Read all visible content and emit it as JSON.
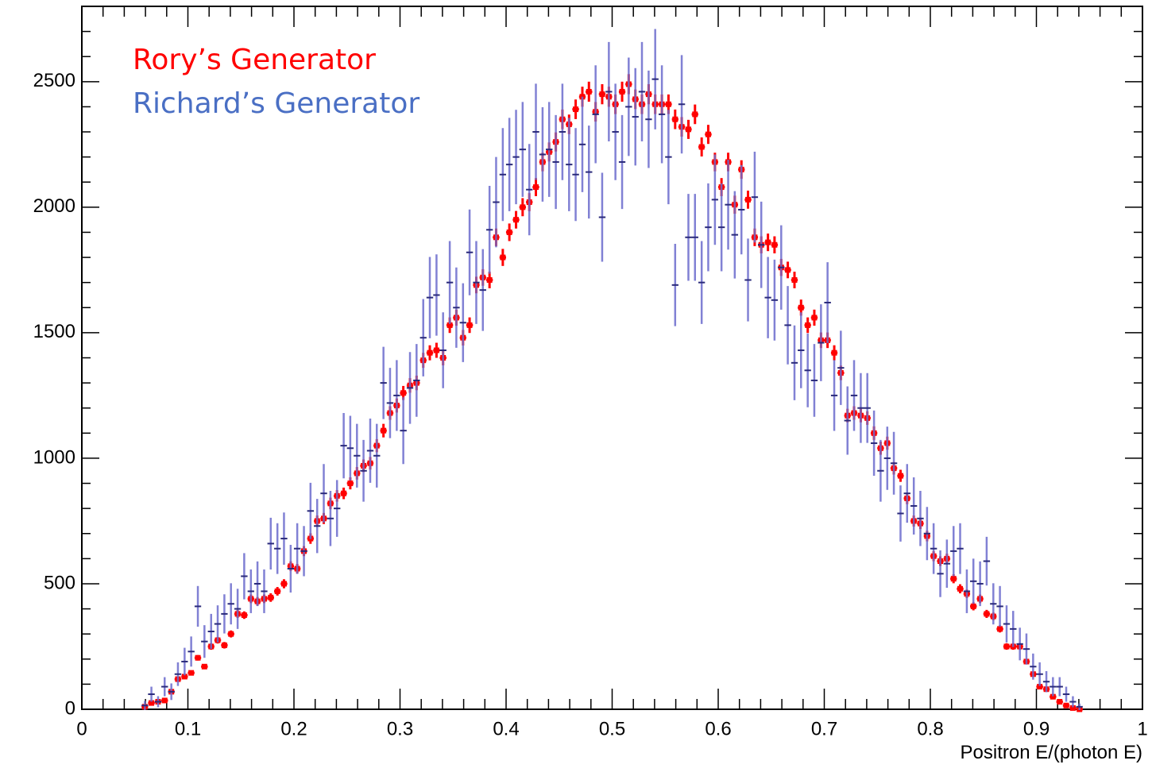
{
  "chart_data": {
    "type": "errorbar",
    "x_label": "Positron E/(photon E)",
    "xlim": [
      0,
      1
    ],
    "ylim": [
      0,
      2800
    ],
    "xticks": [
      0,
      0.1,
      0.2,
      0.3,
      0.4,
      0.5,
      0.6,
      0.7,
      0.8,
      0.9,
      1
    ],
    "yticks": [
      0,
      500,
      1000,
      1500,
      2000,
      2500
    ],
    "xminorticks": [
      0.02,
      0.04,
      0.06,
      0.08,
      0.12,
      0.14,
      0.16,
      0.18,
      0.22,
      0.24,
      0.26,
      0.28,
      0.32,
      0.34,
      0.36,
      0.38,
      0.42,
      0.44,
      0.46,
      0.48,
      0.52,
      0.54,
      0.56,
      0.58,
      0.62,
      0.64,
      0.66,
      0.68,
      0.72,
      0.74,
      0.76,
      0.78,
      0.82,
      0.84,
      0.86,
      0.88,
      0.92,
      0.94,
      0.96,
      0.98
    ],
    "yminorticks": [
      100,
      200,
      300,
      400,
      600,
      700,
      800,
      900,
      1100,
      1200,
      1300,
      1400,
      1600,
      1700,
      1800,
      1900,
      2100,
      2200,
      2300,
      2400,
      2600,
      2700
    ],
    "grid": false,
    "legend": "upper left",
    "x": [
      0.0594,
      0.0656,
      0.0719,
      0.0781,
      0.0844,
      0.0906,
      0.0969,
      0.1031,
      0.1094,
      0.1156,
      0.1219,
      0.1281,
      0.1344,
      0.1406,
      0.1469,
      0.1531,
      0.1594,
      0.1656,
      0.1719,
      0.1781,
      0.1844,
      0.1906,
      0.1969,
      0.2031,
      0.2094,
      0.2156,
      0.2219,
      0.2281,
      0.2344,
      0.2406,
      0.2469,
      0.2531,
      0.2594,
      0.2656,
      0.2719,
      0.2781,
      0.2844,
      0.2906,
      0.2969,
      0.3031,
      0.3094,
      0.3156,
      0.3219,
      0.3281,
      0.3344,
      0.3406,
      0.3469,
      0.3531,
      0.3594,
      0.3656,
      0.3719,
      0.3781,
      0.3844,
      0.3906,
      0.3969,
      0.4031,
      0.4094,
      0.4156,
      0.4219,
      0.4281,
      0.4344,
      0.4406,
      0.4469,
      0.4531,
      0.4594,
      0.4656,
      0.4719,
      0.4781,
      0.4844,
      0.4906,
      0.4969,
      0.5031,
      0.5094,
      0.5156,
      0.5219,
      0.5281,
      0.5344,
      0.5406,
      0.5469,
      0.5531,
      0.5594,
      0.5656,
      0.5719,
      0.5781,
      0.5844,
      0.5906,
      0.5969,
      0.6031,
      0.6094,
      0.6156,
      0.6219,
      0.6281,
      0.6344,
      0.6406,
      0.6469,
      0.6531,
      0.6594,
      0.6656,
      0.6719,
      0.6781,
      0.6844,
      0.6906,
      0.6969,
      0.7031,
      0.7094,
      0.7156,
      0.7219,
      0.7281,
      0.7344,
      0.7406,
      0.7469,
      0.7531,
      0.7594,
      0.7656,
      0.7719,
      0.7781,
      0.7844,
      0.7906,
      0.7969,
      0.8031,
      0.8094,
      0.8156,
      0.8219,
      0.8281,
      0.8344,
      0.8406,
      0.8469,
      0.8531,
      0.8594,
      0.8656,
      0.8719,
      0.8781,
      0.8844,
      0.8906,
      0.8969,
      0.9031,
      0.9094,
      0.9156,
      0.9219,
      0.9281,
      0.9344,
      0.9406
    ],
    "series": [
      {
        "name": "Rory’s Generator",
        "color": "#ff0000",
        "marker": "square",
        "values": [
          10,
          25,
          30,
          35,
          70,
          120,
          130,
          145,
          205,
          170,
          250,
          275,
          255,
          300,
          380,
          375,
          440,
          430,
          440,
          445,
          470,
          500,
          570,
          560,
          630,
          680,
          750,
          760,
          820,
          850,
          860,
          900,
          940,
          970,
          980,
          1050,
          1110,
          1180,
          1210,
          1260,
          1290,
          1300,
          1390,
          1420,
          1430,
          1400,
          1530,
          1560,
          1480,
          1530,
          1690,
          1720,
          1710,
          1880,
          1800,
          1900,
          1950,
          2000,
          2020,
          2080,
          2180,
          2220,
          2260,
          2350,
          2330,
          2390,
          2440,
          2460,
          2380,
          2450,
          2440,
          2410,
          2460,
          2490,
          2430,
          2410,
          2450,
          2410,
          2410,
          2410,
          2350,
          2320,
          2310,
          2370,
          2240,
          2290,
          2180,
          2080,
          2180,
          2010,
          2150,
          2030,
          1880,
          1850,
          1860,
          1850,
          1760,
          1750,
          1710,
          1600,
          1530,
          1560,
          1470,
          1470,
          1420,
          1340,
          1170,
          1180,
          1170,
          1160,
          1100,
          1040,
          1060,
          960,
          930,
          840,
          750,
          740,
          690,
          610,
          590,
          600,
          520,
          480,
          460,
          410,
          440,
          380,
          370,
          320,
          250,
          250,
          250,
          190,
          140,
          90,
          80,
          50,
          30,
          15,
          5,
          0
        ],
        "errors": [
          3,
          4,
          4,
          5,
          7,
          9,
          9,
          10,
          11,
          10,
          13,
          13,
          13,
          14,
          16,
          15,
          17,
          17,
          17,
          17,
          17,
          18,
          19,
          19,
          20,
          21,
          22,
          22,
          23,
          23,
          23,
          24,
          25,
          25,
          25,
          26,
          27,
          27,
          28,
          28,
          29,
          29,
          30,
          30,
          30,
          30,
          31,
          32,
          31,
          31,
          33,
          33,
          33,
          35,
          34,
          35,
          35,
          36,
          36,
          36,
          37,
          38,
          38,
          39,
          39,
          39,
          40,
          40,
          39,
          40,
          40,
          39,
          40,
          40,
          39,
          39,
          40,
          39,
          39,
          39,
          39,
          39,
          38,
          39,
          38,
          38,
          37,
          36,
          37,
          36,
          37,
          36,
          35,
          34,
          35,
          34,
          34,
          33,
          33,
          32,
          31,
          32,
          31,
          31,
          30,
          29,
          27,
          27,
          27,
          27,
          27,
          26,
          26,
          25,
          24,
          23,
          22,
          22,
          21,
          20,
          19,
          20,
          18,
          18,
          17,
          16,
          17,
          16,
          15,
          14,
          13,
          13,
          13,
          11,
          9,
          8,
          7,
          6,
          4,
          3,
          2,
          0
        ]
      },
      {
        "name": "Richard’s Generator",
        "color": "#6b6bcc",
        "marker": "none",
        "values": [
          15,
          60,
          30,
          90,
          70,
          140,
          190,
          230,
          410,
          270,
          310,
          340,
          380,
          420,
          400,
          530,
          470,
          500,
          470,
          660,
          640,
          680,
          560,
          640,
          630,
          790,
          730,
          860,
          760,
          800,
          1050,
          1040,
          1010,
          950,
          1030,
          1010,
          1300,
          1220,
          1250,
          1110,
          1280,
          1310,
          1480,
          1640,
          1650,
          1430,
          1700,
          1600,
          1540,
          1820,
          1700,
          1670,
          1910,
          2020,
          2130,
          2170,
          2200,
          2230,
          2070,
          2300,
          2210,
          2230,
          2180,
          2300,
          2170,
          2130,
          2250,
          2140,
          2370,
          1960,
          2460,
          2300,
          2180,
          2400,
          2360,
          2460,
          2350,
          2510,
          2370,
          2200,
          1690,
          2410,
          1880,
          1880,
          1700,
          1920,
          2030,
          1920,
          2010,
          1890,
          1990,
          1710,
          2040,
          1850,
          1640,
          1630,
          1760,
          1530,
          1380,
          1430,
          1350,
          1310,
          1460,
          1620,
          1250,
          1360,
          1150,
          1250,
          1200,
          1200,
          1060,
          950,
          1000,
          980,
          780,
          860,
          810,
          760,
          700,
          640,
          540,
          580,
          630,
          640,
          470,
          510,
          500,
          590,
          420,
          410,
          340,
          320,
          260,
          240,
          170,
          140,
          110,
          90,
          90,
          60,
          30,
          10
        ],
        "errors": [
          18,
          30,
          22,
          38,
          33,
          47,
          55,
          60,
          81,
          65,
          70,
          74,
          78,
          82,
          80,
          92,
          87,
          89,
          87,
          103,
          101,
          104,
          95,
          101,
          100,
          112,
          108,
          117,
          110,
          113,
          130,
          129,
          127,
          123,
          128,
          127,
          144,
          140,
          141,
          133,
          143,
          145,
          154,
          162,
          162,
          151,
          165,
          160,
          157,
          171,
          165,
          163,
          175,
          180,
          185,
          186,
          188,
          189,
          182,
          192,
          188,
          189,
          187,
          192,
          186,
          185,
          190,
          185,
          195,
          177,
          198,
          192,
          187,
          196,
          194,
          198,
          194,
          200,
          195,
          188,
          164,
          196,
          173,
          173,
          165,
          175,
          180,
          175,
          179,
          174,
          178,
          165,
          181,
          172,
          162,
          161,
          168,
          156,
          149,
          151,
          147,
          145,
          153,
          161,
          141,
          148,
          136,
          141,
          139,
          139,
          130,
          123,
          126,
          125,
          112,
          117,
          114,
          110,
          106,
          101,
          93,
          96,
          100,
          101,
          87,
          90,
          89,
          97,
          82,
          81,
          74,
          72,
          65,
          62,
          52,
          47,
          42,
          38,
          38,
          30,
          22,
          13
        ]
      }
    ]
  }
}
